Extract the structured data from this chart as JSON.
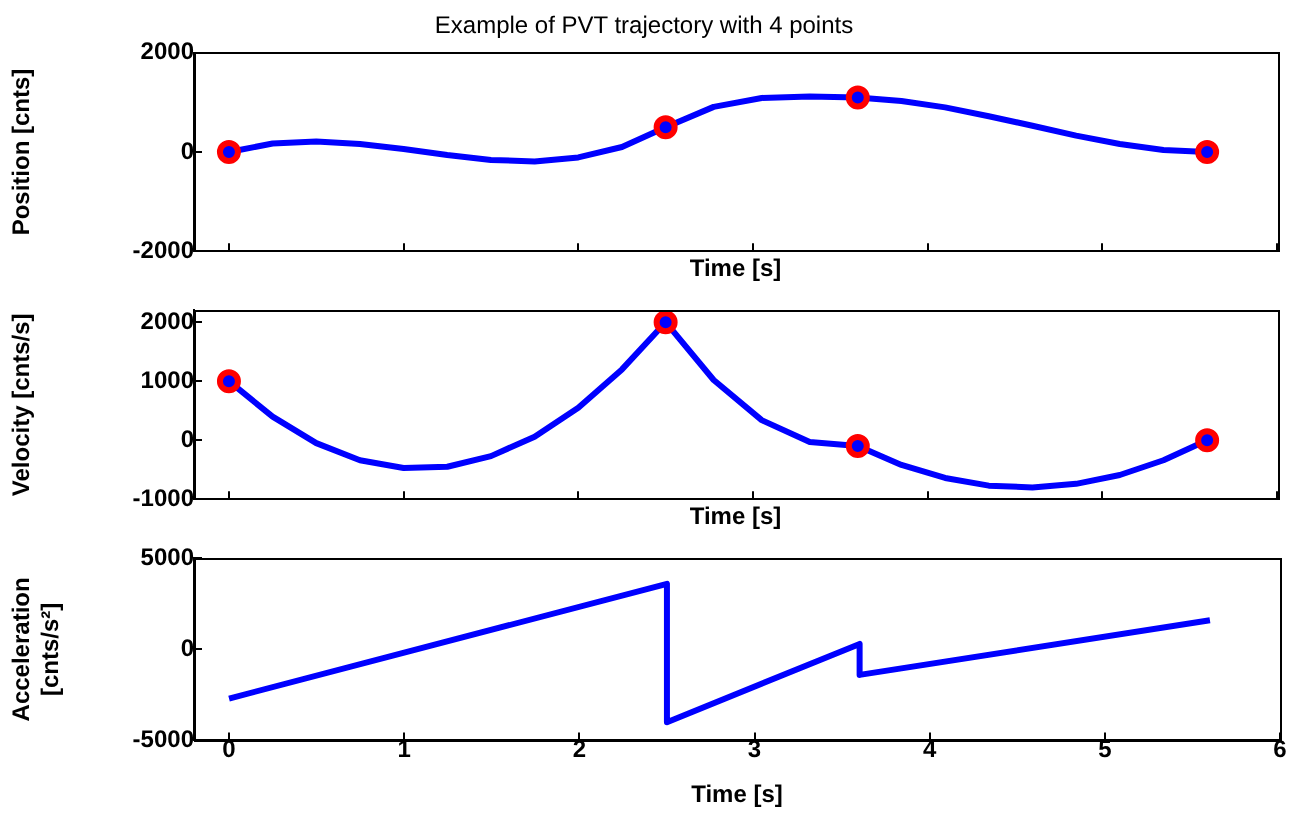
{
  "chart_data": [
    {
      "type": "line",
      "title": "Example of PVT trajectory with 4 points",
      "xlabel": "Time [s]",
      "ylabel": "Position [cnts]",
      "xlim": [
        -0.2,
        6
      ],
      "xticks": [
        0,
        1,
        2,
        3,
        4,
        5,
        6
      ],
      "ylim": [
        -2000,
        2000
      ],
      "yticks": [
        -2000,
        0,
        2000
      ],
      "tick_labels": "y",
      "grid": false,
      "legend": false,
      "series": [
        {
          "color": "#0000ff",
          "marker": "none",
          "x": [
            0,
            0.25,
            0.5,
            0.75,
            1,
            1.25,
            1.5,
            1.75,
            2,
            2.25,
            2.5,
            2.775,
            3.05,
            3.325,
            3.6,
            3.85,
            4.1,
            4.35,
            4.6,
            4.85,
            5.1,
            5.35,
            5.6
          ],
          "values": [
            0,
            170,
            210,
            160,
            60,
            -60,
            -160,
            -190,
            -110,
            100,
            500,
            910,
            1090,
            1120,
            1100,
            1030,
            900,
            720,
            530,
            330,
            160,
            40,
            0
          ]
        },
        {
          "type": "scatter",
          "color": "#ff0000",
          "marker": "circle",
          "x": [
            0,
            2.5,
            3.6,
            5.6
          ],
          "values": [
            0,
            500,
            1100,
            0
          ]
        }
      ]
    },
    {
      "type": "line",
      "xlabel": "Time [s]",
      "ylabel": "Velocity [cnts/s]",
      "xlim": [
        -0.2,
        6
      ],
      "xticks": [
        0,
        1,
        2,
        3,
        4,
        5,
        6
      ],
      "ylim": [
        -1000,
        2200
      ],
      "yticks": [
        -1000,
        0,
        1000,
        2000
      ],
      "tick_labels": "y",
      "grid": false,
      "legend": false,
      "series": [
        {
          "color": "#0000ff",
          "marker": "none",
          "x": [
            0,
            0.25,
            0.5,
            0.75,
            1,
            1.25,
            1.5,
            1.75,
            2,
            2.25,
            2.5,
            2.775,
            3.05,
            3.325,
            3.6,
            3.85,
            4.1,
            4.35,
            4.6,
            4.85,
            5.1,
            5.35,
            5.6
          ],
          "values": [
            1000,
            400,
            -50,
            -340,
            -470,
            -450,
            -270,
            60,
            550,
            1200,
            2000,
            1020,
            340,
            -30,
            -100,
            -420,
            -640,
            -770,
            -800,
            -740,
            -590,
            -340,
            0
          ]
        },
        {
          "type": "scatter",
          "color": "#ff0000",
          "marker": "circle",
          "x": [
            0,
            2.5,
            3.6,
            5.6
          ],
          "values": [
            1000,
            2000,
            -100,
            0
          ]
        }
      ]
    },
    {
      "type": "line",
      "xlabel": "Time [s]",
      "ylabel": "Acceleration [cnts/s²]",
      "xlim": [
        -0.2,
        6
      ],
      "xticks": [
        0,
        1,
        2,
        3,
        4,
        5,
        6
      ],
      "ylim": [
        -5000,
        5000
      ],
      "yticks": [
        -5000,
        0,
        5000
      ],
      "grid": false,
      "legend": false,
      "series": [
        {
          "color": "#0000ff",
          "marker": "none",
          "x": [
            0,
            2.5,
            2.5,
            3.6,
            3.6,
            5.6
          ],
          "values": [
            -2700,
            3600,
            -4000,
            300,
            -1400,
            1600
          ]
        }
      ]
    }
  ]
}
